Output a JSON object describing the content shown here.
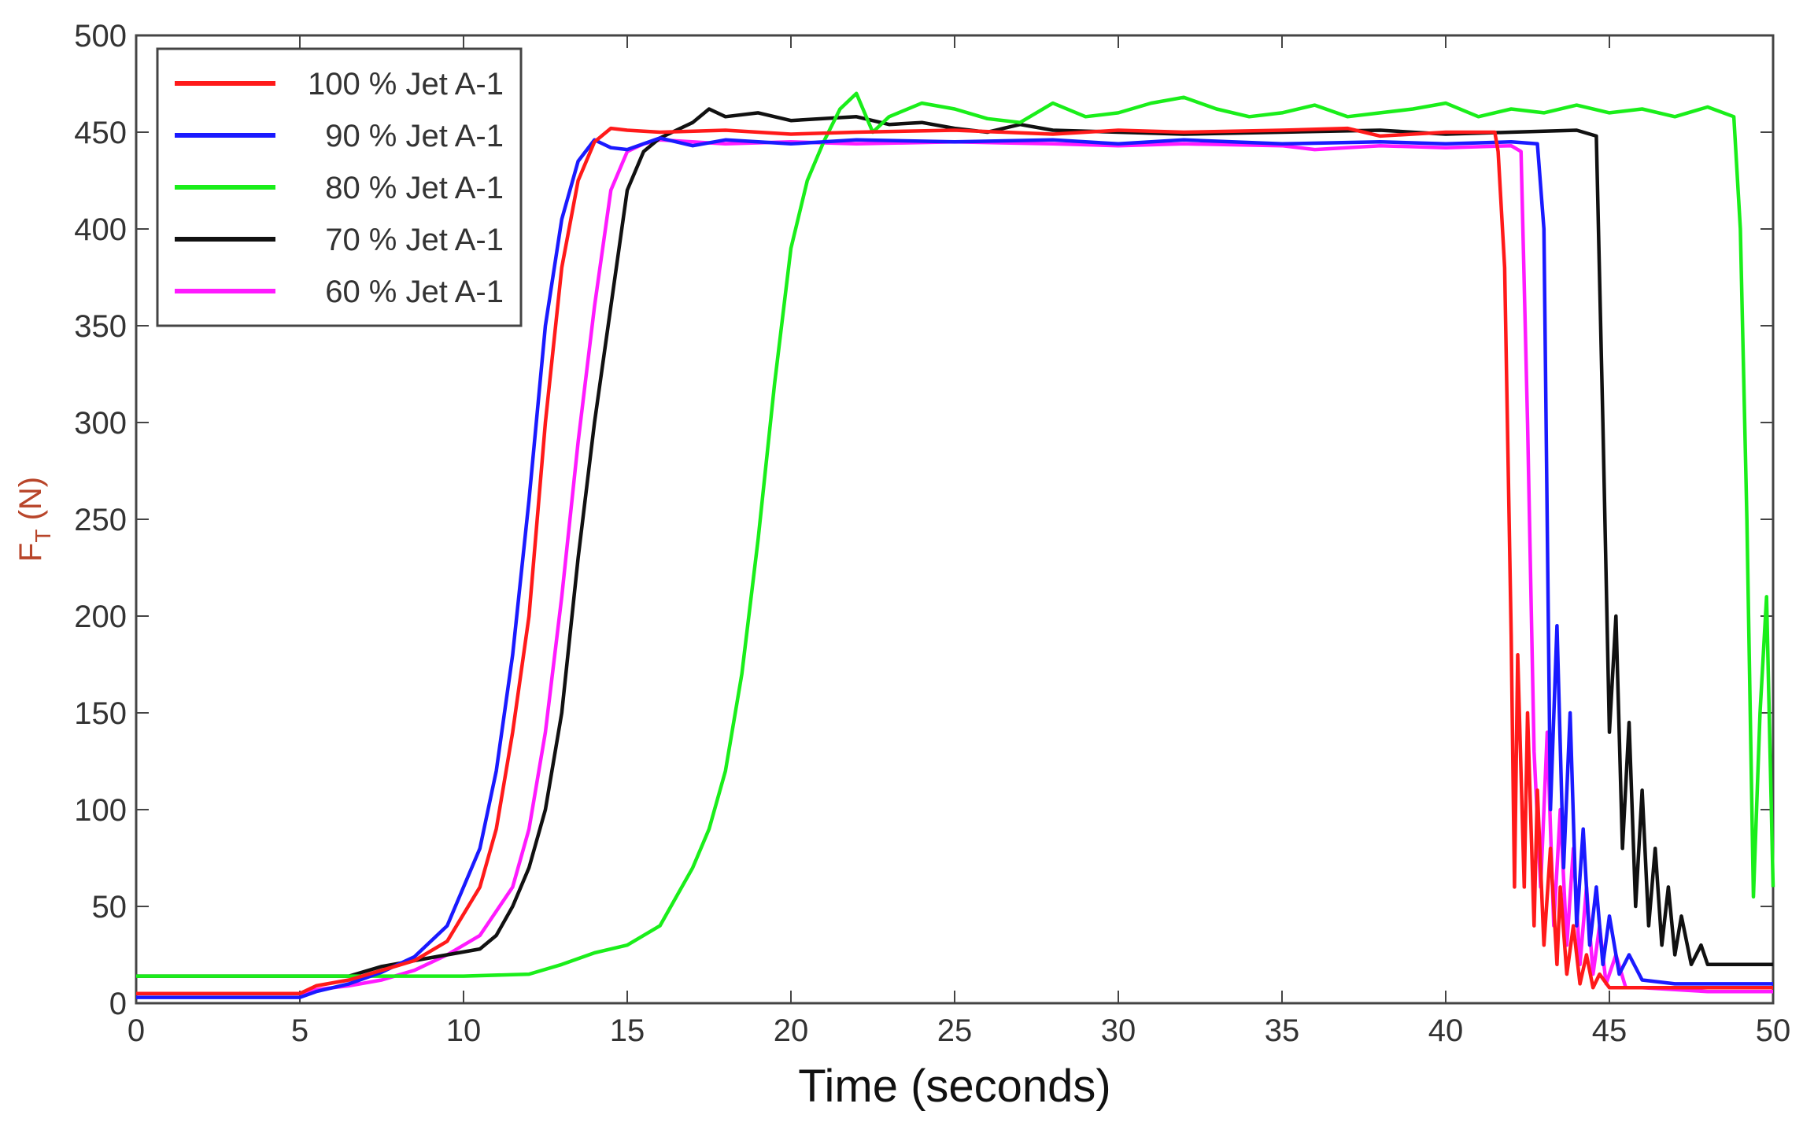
{
  "chart_data": {
    "type": "line",
    "title": "",
    "xlabel": "Time (seconds)",
    "ylabel_main": "F",
    "ylabel_sub": "T",
    "ylabel_unit": " (N)",
    "xlim": [
      0,
      50
    ],
    "ylim": [
      0,
      500
    ],
    "xticks": [
      0,
      5,
      10,
      15,
      20,
      25,
      30,
      35,
      40,
      45,
      50
    ],
    "yticks": [
      0,
      50,
      100,
      150,
      200,
      250,
      300,
      350,
      400,
      450,
      500
    ],
    "grid": false,
    "legend_position": "top-left",
    "series": [
      {
        "name": "100 % Jet A-1",
        "color": "#ff1a1a",
        "points": [
          [
            0,
            5
          ],
          [
            5,
            5
          ],
          [
            5.5,
            9
          ],
          [
            6.5,
            12
          ],
          [
            7.5,
            17
          ],
          [
            8.5,
            22
          ],
          [
            9.5,
            32
          ],
          [
            10.5,
            60
          ],
          [
            11,
            90
          ],
          [
            11.5,
            140
          ],
          [
            12,
            200
          ],
          [
            12.5,
            300
          ],
          [
            13,
            380
          ],
          [
            13.5,
            425
          ],
          [
            14,
            445
          ],
          [
            14.5,
            452
          ],
          [
            15,
            451
          ],
          [
            16,
            450
          ],
          [
            18,
            451
          ],
          [
            20,
            449
          ],
          [
            22,
            450
          ],
          [
            25,
            451
          ],
          [
            28,
            449
          ],
          [
            30,
            451
          ],
          [
            32,
            450
          ],
          [
            35,
            451
          ],
          [
            37,
            452
          ],
          [
            38,
            448
          ],
          [
            40,
            450
          ],
          [
            41.5,
            450
          ],
          [
            41.6,
            440
          ],
          [
            41.8,
            380
          ],
          [
            42,
            190
          ],
          [
            42.1,
            60
          ],
          [
            42.2,
            180
          ],
          [
            42.4,
            60
          ],
          [
            42.5,
            150
          ],
          [
            42.7,
            40
          ],
          [
            42.8,
            110
          ],
          [
            43,
            30
          ],
          [
            43.2,
            80
          ],
          [
            43.4,
            20
          ],
          [
            43.5,
            60
          ],
          [
            43.7,
            15
          ],
          [
            43.9,
            40
          ],
          [
            44.1,
            10
          ],
          [
            44.3,
            25
          ],
          [
            44.5,
            8
          ],
          [
            44.7,
            15
          ],
          [
            45,
            8
          ],
          [
            46,
            8
          ],
          [
            48,
            8
          ],
          [
            50,
            8
          ]
        ]
      },
      {
        "name": "90 % Jet A-1",
        "color": "#1a1aff",
        "points": [
          [
            0,
            3
          ],
          [
            5,
            3
          ],
          [
            5.5,
            6
          ],
          [
            6.5,
            10
          ],
          [
            7.5,
            16
          ],
          [
            8.5,
            24
          ],
          [
            9.5,
            40
          ],
          [
            10.5,
            80
          ],
          [
            11,
            120
          ],
          [
            11.5,
            180
          ],
          [
            12,
            260
          ],
          [
            12.5,
            350
          ],
          [
            13,
            405
          ],
          [
            13.5,
            435
          ],
          [
            14,
            446
          ],
          [
            14.5,
            442
          ],
          [
            15,
            441
          ],
          [
            16,
            447
          ],
          [
            17,
            443
          ],
          [
            18,
            446
          ],
          [
            20,
            444
          ],
          [
            22,
            446
          ],
          [
            25,
            445
          ],
          [
            28,
            446
          ],
          [
            30,
            444
          ],
          [
            32,
            446
          ],
          [
            35,
            444
          ],
          [
            38,
            445
          ],
          [
            40,
            444
          ],
          [
            42,
            445
          ],
          [
            42.8,
            444
          ],
          [
            43,
            400
          ],
          [
            43.2,
            100
          ],
          [
            43.4,
            195
          ],
          [
            43.6,
            70
          ],
          [
            43.8,
            150
          ],
          [
            44,
            40
          ],
          [
            44.2,
            90
          ],
          [
            44.4,
            30
          ],
          [
            44.6,
            60
          ],
          [
            44.8,
            20
          ],
          [
            45,
            45
          ],
          [
            45.3,
            15
          ],
          [
            45.6,
            25
          ],
          [
            46,
            12
          ],
          [
            47,
            10
          ],
          [
            48,
            10
          ],
          [
            50,
            10
          ]
        ]
      },
      {
        "name": "80 % Jet A-1",
        "color": "#1aee1a",
        "points": [
          [
            0,
            14
          ],
          [
            5,
            14
          ],
          [
            8,
            14
          ],
          [
            10,
            14
          ],
          [
            12,
            15
          ],
          [
            13,
            20
          ],
          [
            14,
            26
          ],
          [
            15,
            30
          ],
          [
            16,
            40
          ],
          [
            16.5,
            55
          ],
          [
            17,
            70
          ],
          [
            17.5,
            90
          ],
          [
            18,
            120
          ],
          [
            18.5,
            170
          ],
          [
            19,
            240
          ],
          [
            19.5,
            320
          ],
          [
            20,
            390
          ],
          [
            20.5,
            425
          ],
          [
            21,
            445
          ],
          [
            21.5,
            462
          ],
          [
            22,
            470
          ],
          [
            22.5,
            450
          ],
          [
            23,
            458
          ],
          [
            24,
            465
          ],
          [
            25,
            462
          ],
          [
            26,
            457
          ],
          [
            27,
            455
          ],
          [
            28,
            465
          ],
          [
            29,
            458
          ],
          [
            30,
            460
          ],
          [
            31,
            465
          ],
          [
            32,
            468
          ],
          [
            33,
            462
          ],
          [
            34,
            458
          ],
          [
            35,
            460
          ],
          [
            36,
            464
          ],
          [
            37,
            458
          ],
          [
            38,
            460
          ],
          [
            39,
            462
          ],
          [
            40,
            465
          ],
          [
            41,
            458
          ],
          [
            42,
            462
          ],
          [
            43,
            460
          ],
          [
            44,
            464
          ],
          [
            45,
            460
          ],
          [
            46,
            462
          ],
          [
            47,
            458
          ],
          [
            48,
            463
          ],
          [
            48.8,
            458
          ],
          [
            49,
            400
          ],
          [
            49.2,
            250
          ],
          [
            49.4,
            55
          ],
          [
            49.6,
            150
          ],
          [
            49.8,
            210
          ],
          [
            50,
            60
          ]
        ]
      },
      {
        "name": "70 % Jet A-1",
        "color": "#111111",
        "points": [
          [
            0,
            14
          ],
          [
            5,
            14
          ],
          [
            6.5,
            14
          ],
          [
            7.5,
            19
          ],
          [
            8.5,
            22
          ],
          [
            9.5,
            25
          ],
          [
            10.5,
            28
          ],
          [
            11,
            35
          ],
          [
            11.5,
            50
          ],
          [
            12,
            70
          ],
          [
            12.5,
            100
          ],
          [
            13,
            150
          ],
          [
            13.5,
            230
          ],
          [
            14,
            300
          ],
          [
            14.5,
            360
          ],
          [
            15,
            420
          ],
          [
            15.5,
            440
          ],
          [
            16,
            447
          ],
          [
            17,
            455
          ],
          [
            17.5,
            462
          ],
          [
            18,
            458
          ],
          [
            19,
            460
          ],
          [
            20,
            456
          ],
          [
            22,
            458
          ],
          [
            23,
            454
          ],
          [
            24,
            455
          ],
          [
            25,
            452
          ],
          [
            26,
            450
          ],
          [
            27,
            454
          ],
          [
            28,
            451
          ],
          [
            30,
            450
          ],
          [
            32,
            449
          ],
          [
            35,
            450
          ],
          [
            38,
            451
          ],
          [
            40,
            449
          ],
          [
            42,
            450
          ],
          [
            44,
            451
          ],
          [
            44.6,
            448
          ],
          [
            44.8,
            300
          ],
          [
            45,
            140
          ],
          [
            45.2,
            200
          ],
          [
            45.4,
            80
          ],
          [
            45.6,
            145
          ],
          [
            45.8,
            50
          ],
          [
            46,
            110
          ],
          [
            46.2,
            40
          ],
          [
            46.4,
            80
          ],
          [
            46.6,
            30
          ],
          [
            46.8,
            60
          ],
          [
            47,
            25
          ],
          [
            47.2,
            45
          ],
          [
            47.5,
            20
          ],
          [
            47.8,
            30
          ],
          [
            48,
            20
          ],
          [
            49,
            20
          ],
          [
            50,
            20
          ]
        ]
      },
      {
        "name": "60 % Jet A-1",
        "color": "#ff1aff",
        "points": [
          [
            0,
            5
          ],
          [
            5,
            5
          ],
          [
            5.5,
            7
          ],
          [
            6.5,
            9
          ],
          [
            7.5,
            12
          ],
          [
            8.5,
            17
          ],
          [
            9.5,
            25
          ],
          [
            10.5,
            35
          ],
          [
            11.5,
            60
          ],
          [
            12,
            90
          ],
          [
            12.5,
            140
          ],
          [
            13,
            210
          ],
          [
            13.5,
            290
          ],
          [
            14,
            360
          ],
          [
            14.5,
            420
          ],
          [
            15,
            440
          ],
          [
            15.5,
            444
          ],
          [
            16,
            446
          ],
          [
            18,
            444
          ],
          [
            20,
            445
          ],
          [
            22,
            444
          ],
          [
            25,
            445
          ],
          [
            28,
            444
          ],
          [
            30,
            443
          ],
          [
            32,
            444
          ],
          [
            35,
            443
          ],
          [
            36,
            441
          ],
          [
            38,
            443
          ],
          [
            40,
            442
          ],
          [
            42,
            443
          ],
          [
            42.3,
            440
          ],
          [
            42.5,
            300
          ],
          [
            42.7,
            130
          ],
          [
            42.9,
            60
          ],
          [
            43.1,
            140
          ],
          [
            43.3,
            40
          ],
          [
            43.5,
            100
          ],
          [
            43.7,
            30
          ],
          [
            43.9,
            80
          ],
          [
            44.1,
            20
          ],
          [
            44.3,
            60
          ],
          [
            44.5,
            15
          ],
          [
            44.7,
            40
          ],
          [
            44.9,
            10
          ],
          [
            45.2,
            25
          ],
          [
            45.5,
            8
          ],
          [
            46,
            8
          ],
          [
            48,
            6
          ],
          [
            50,
            6
          ]
        ]
      }
    ]
  }
}
